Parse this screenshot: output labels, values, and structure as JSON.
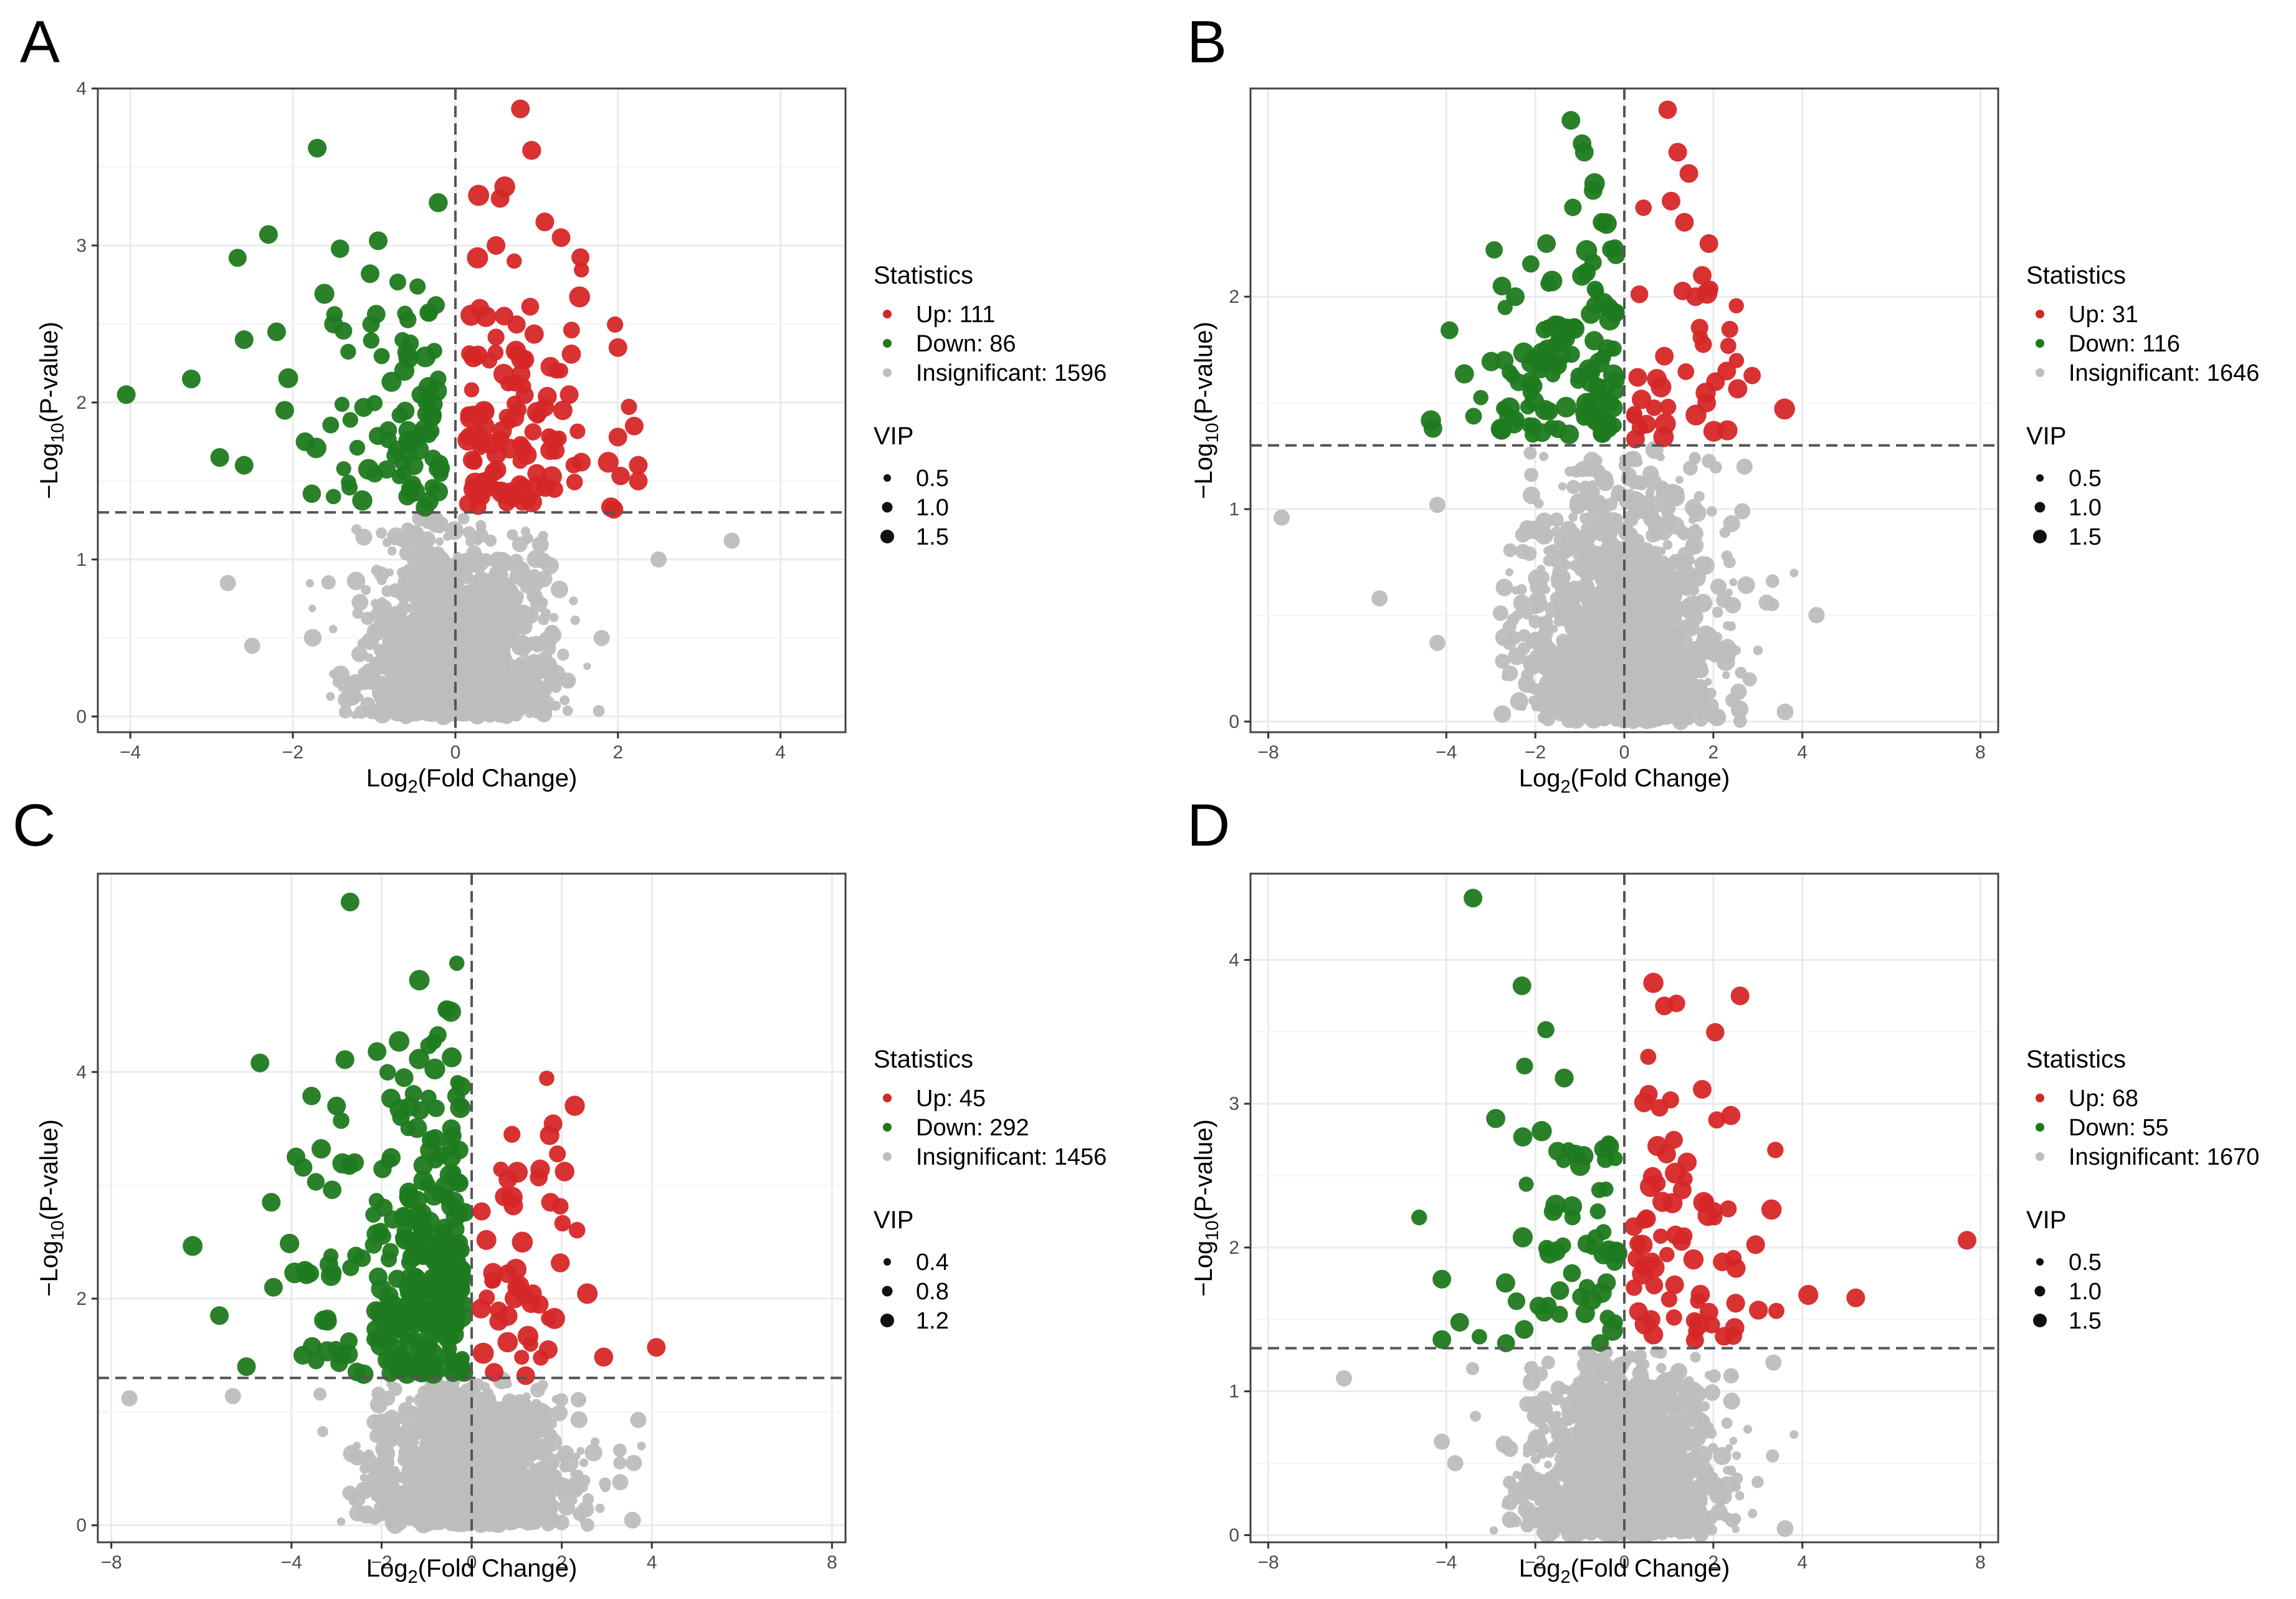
{
  "figure": {
    "panels": [
      "A",
      "B",
      "C",
      "D"
    ]
  },
  "colors": {
    "up": "#d62728",
    "down": "#1f7a1f",
    "insignificant": "#bdbdbd",
    "threshold_line": "#555555",
    "panel_background": "#ffffff",
    "grid": "#ebebeb",
    "border": "#444444"
  },
  "chart_data": [
    {
      "panel": "A",
      "type": "scatter",
      "xlabel": "Log2(Fold Change)",
      "ylabel": "−Log10(P-value)",
      "xlim": [
        -4.4,
        4.8
      ],
      "ylim": [
        -0.1,
        4.0
      ],
      "xticks": [
        -4,
        -2,
        0,
        2,
        4
      ],
      "yticks": [
        0,
        1,
        2,
        3,
        4
      ],
      "threshold_y": 1.3,
      "threshold_x": 0,
      "grid": true,
      "legend": {
        "statistics_title": "Statistics",
        "statistics": [
          {
            "key": "up",
            "label": "Up: 111"
          },
          {
            "key": "down",
            "label": "Down: 86"
          },
          {
            "key": "insignificant",
            "label": "Insignificant: 1596"
          }
        ],
        "size_title": "VIP",
        "size_labels": [
          "0.5",
          "1.0",
          "1.5"
        ],
        "placement": "right"
      },
      "counts": {
        "up": 111,
        "down": 86,
        "insignificant": 1596
      },
      "sample_points": {
        "up": [
          [
            0.8,
            3.87
          ],
          [
            0.55,
            3.3
          ],
          [
            1.1,
            3.15
          ],
          [
            1.3,
            3.05
          ],
          [
            0.5,
            3.0
          ],
          [
            2.0,
            2.35
          ],
          [
            2.2,
            1.85
          ],
          [
            2.25,
            1.6
          ],
          [
            1.55,
            1.62
          ],
          [
            0.3,
            2.6
          ],
          [
            0.6,
            2.55
          ],
          [
            1.4,
            2.05
          ],
          [
            2.0,
            1.78
          ],
          [
            2.25,
            1.5
          ],
          [
            1.95,
            1.32
          ]
        ],
        "down": [
          [
            -4.05,
            2.05
          ],
          [
            -1.7,
            3.62
          ],
          [
            -2.3,
            3.07
          ],
          [
            -0.95,
            3.03
          ],
          [
            -1.05,
            2.82
          ],
          [
            -2.6,
            2.4
          ],
          [
            -2.2,
            2.45
          ],
          [
            -3.25,
            2.15
          ],
          [
            -2.9,
            1.65
          ],
          [
            -2.6,
            1.6
          ],
          [
            -1.5,
            2.5
          ],
          [
            -0.6,
            2.32
          ],
          [
            -0.55,
            1.43
          ],
          [
            -1.85,
            1.75
          ],
          [
            -2.1,
            1.95
          ]
        ],
        "insignificant": [
          [
            3.4,
            1.12
          ],
          [
            2.5,
            1.0
          ],
          [
            -2.8,
            0.85
          ],
          [
            -2.5,
            0.45
          ],
          [
            1.8,
            0.5
          ]
        ]
      }
    },
    {
      "panel": "B",
      "type": "scatter",
      "xlabel": "Log2(Fold Change)",
      "ylabel": "−Log10(P-value)",
      "xlim": [
        -8.4,
        8.4
      ],
      "ylim": [
        -0.05,
        2.98
      ],
      "xticks": [
        -8,
        -4,
        -2,
        0,
        2,
        4,
        8
      ],
      "yticks": [
        0,
        1,
        2
      ],
      "threshold_y": 1.3,
      "threshold_x": 0,
      "grid": true,
      "legend": {
        "statistics_title": "Statistics",
        "statistics": [
          {
            "key": "up",
            "label": "Up: 31"
          },
          {
            "key": "down",
            "label": "Down: 116"
          },
          {
            "key": "insignificant",
            "label": "Insignificant: 1646"
          }
        ],
        "size_title": "VIP",
        "size_labels": [
          "0.5",
          "1.0",
          "1.5"
        ],
        "placement": "right"
      },
      "counts": {
        "up": 31,
        "down": 116,
        "insignificant": 1646
      },
      "sample_points": {
        "up": [
          [
            1.2,
            2.68
          ],
          [
            1.45,
            2.58
          ],
          [
            1.05,
            2.45
          ],
          [
            1.35,
            2.35
          ],
          [
            1.9,
            2.25
          ],
          [
            1.75,
            2.1
          ],
          [
            1.6,
            2.0
          ],
          [
            2.3,
            1.65
          ],
          [
            2.05,
            1.6
          ],
          [
            1.85,
            1.5
          ],
          [
            0.3,
            1.62
          ],
          [
            0.9,
            1.72
          ],
          [
            0.5,
            1.4
          ],
          [
            0.25,
            1.33
          ]
        ],
        "down": [
          [
            -1.2,
            2.83
          ],
          [
            -0.95,
            2.72
          ],
          [
            -0.9,
            2.68
          ],
          [
            -1.75,
            2.25
          ],
          [
            -2.75,
            2.05
          ],
          [
            -2.45,
            2.0
          ],
          [
            -2.7,
            1.7
          ],
          [
            -2.05,
            1.58
          ],
          [
            -4.3,
            1.38
          ],
          [
            -1.85,
            1.36
          ],
          [
            -0.7,
            2.5
          ],
          [
            -0.5,
            2.35
          ]
        ],
        "insignificant": [
          [
            -7.7,
            0.96
          ],
          [
            -5.5,
            0.58
          ],
          [
            -4.2,
            0.37
          ],
          [
            -4.2,
            1.02
          ],
          [
            3.2,
            0.56
          ],
          [
            2.7,
            1.2
          ],
          [
            2.65,
            0.99
          ]
        ]
      }
    },
    {
      "panel": "C",
      "type": "scatter",
      "xlabel": "Log2(Fold Change)",
      "ylabel": "−Log10(P-value)",
      "xlim": [
        -8.3,
        8.3
      ],
      "ylim": [
        -0.15,
        5.75
      ],
      "xticks": [
        -8,
        -4,
        -2,
        0,
        2,
        4,
        8
      ],
      "yticks": [
        0,
        2,
        4
      ],
      "threshold_y": 1.3,
      "threshold_x": 0,
      "grid": true,
      "legend": {
        "statistics_title": "Statistics",
        "statistics": [
          {
            "key": "up",
            "label": "Up: 45"
          },
          {
            "key": "down",
            "label": "Down: 292"
          },
          {
            "key": "insignificant",
            "label": "Insignificant: 1456"
          }
        ],
        "size_title": "VIP",
        "size_labels": [
          "0.4",
          "0.8",
          "1.2"
        ],
        "placement": "right"
      },
      "counts": {
        "up": 45,
        "down": 292,
        "insignificant": 1456
      },
      "sample_points": {
        "up": [
          [
            1.75,
            2.85
          ],
          [
            4.1,
            1.57
          ],
          [
            0.8,
            2.22
          ],
          [
            1.0,
            2.1
          ],
          [
            1.5,
            1.95
          ],
          [
            1.7,
            1.55
          ],
          [
            0.5,
            1.35
          ],
          [
            1.2,
            1.32
          ],
          [
            0.6,
            1.8
          ]
        ],
        "down": [
          [
            -2.7,
            5.5
          ],
          [
            -0.55,
            4.55
          ],
          [
            -4.7,
            4.08
          ],
          [
            -2.1,
            4.18
          ],
          [
            -1.5,
            3.95
          ],
          [
            -3.0,
            3.7
          ],
          [
            -3.9,
            3.25
          ],
          [
            -2.6,
            3.2
          ],
          [
            -4.45,
            2.85
          ],
          [
            -3.7,
            2.25
          ],
          [
            -4.4,
            2.1
          ],
          [
            -5.6,
            1.85
          ],
          [
            -3.2,
            1.8
          ],
          [
            -5.0,
            1.4
          ],
          [
            -3.75,
            1.5
          ],
          [
            -0.45,
            3.5
          ],
          [
            -0.9,
            3.4
          ]
        ],
        "insignificant": [
          [
            -7.6,
            1.12
          ],
          [
            -5.3,
            1.14
          ],
          [
            3.6,
            0.55
          ],
          [
            3.7,
            0.93
          ],
          [
            3.3,
            0.38
          ]
        ]
      }
    },
    {
      "panel": "D",
      "type": "scatter",
      "xlabel": "Log2(Fold Change)",
      "ylabel": "−Log10(P-value)",
      "xlim": [
        -8.4,
        8.4
      ],
      "ylim": [
        -0.05,
        4.6
      ],
      "xticks": [
        -8,
        -4,
        -2,
        0,
        2,
        4,
        8
      ],
      "yticks": [
        0,
        1,
        2,
        3,
        4
      ],
      "threshold_y": 1.3,
      "threshold_x": 0,
      "grid": true,
      "legend": {
        "statistics_title": "Statistics",
        "statistics": [
          {
            "key": "up",
            "label": "Up: 68"
          },
          {
            "key": "down",
            "label": "Down: 55"
          },
          {
            "key": "insignificant",
            "label": "Insignificant: 1670"
          }
        ],
        "size_title": "VIP",
        "size_labels": [
          "0.5",
          "1.0",
          "1.5"
        ],
        "placement": "right"
      },
      "counts": {
        "up": 68,
        "down": 55,
        "insignificant": 1670
      },
      "sample_points": {
        "up": [
          [
            2.6,
            3.75
          ],
          [
            0.9,
            3.68
          ],
          [
            1.75,
            3.1
          ],
          [
            7.7,
            2.05
          ],
          [
            5.2,
            1.65
          ],
          [
            2.95,
            2.02
          ],
          [
            0.95,
            2.65
          ],
          [
            1.3,
            2.4
          ],
          [
            2.2,
            1.9
          ],
          [
            1.9,
            1.55
          ],
          [
            0.5,
            2.2
          ],
          [
            0.6,
            1.5
          ]
        ],
        "down": [
          [
            -3.4,
            4.43
          ],
          [
            -2.3,
            3.82
          ],
          [
            -1.5,
            2.67
          ],
          [
            -1.1,
            2.65
          ],
          [
            -4.1,
            1.78
          ],
          [
            -3.7,
            1.48
          ],
          [
            -4.1,
            1.36
          ],
          [
            -2.25,
            1.43
          ],
          [
            -1.6,
            2.25
          ],
          [
            -1.45,
            1.7
          ],
          [
            -1.8,
            1.55
          ]
        ],
        "insignificant": [
          [
            -6.3,
            1.09
          ],
          [
            3.35,
            1.2
          ],
          [
            -4.1,
            0.65
          ],
          [
            -3.8,
            0.5
          ]
        ]
      }
    }
  ]
}
